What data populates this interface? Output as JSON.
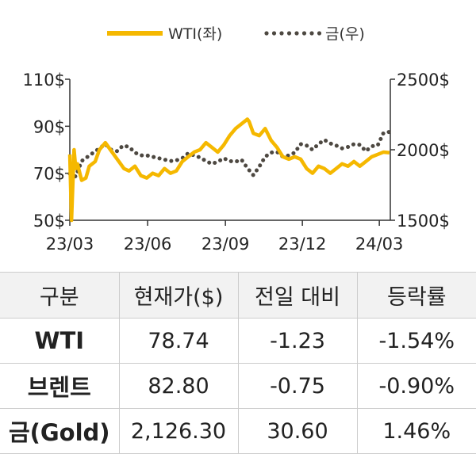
{
  "chart_data": {
    "type": "line",
    "x_ticks": [
      "23/03",
      "23/06",
      "23/09",
      "23/12",
      "24/03"
    ],
    "left_axis": {
      "ticks": [
        "50$",
        "70$",
        "90$",
        "110$"
      ],
      "ylim": [
        50,
        110
      ]
    },
    "right_axis": {
      "ticks": [
        "1500$",
        "2000$",
        "2500$"
      ],
      "ylim": [
        1500,
        2500
      ]
    },
    "legend_position": "top-center",
    "series": [
      {
        "name": "WTI(좌)",
        "axis": "left",
        "color": "#f5b800",
        "style": "solid",
        "x": [
          "2023-03-01",
          "2023-03-03",
          "2023-03-06",
          "2023-03-08",
          "2023-03-10",
          "2023-03-15",
          "2023-03-20",
          "2023-03-24",
          "2023-03-31",
          "2023-04-05",
          "2023-04-12",
          "2023-04-18",
          "2023-04-24",
          "2023-04-28",
          "2023-05-04",
          "2023-05-10",
          "2023-05-17",
          "2023-05-24",
          "2023-05-31",
          "2023-06-07",
          "2023-06-14",
          "2023-06-21",
          "2023-06-28",
          "2023-07-05",
          "2023-07-12",
          "2023-07-19",
          "2023-07-26",
          "2023-08-02",
          "2023-08-09",
          "2023-08-16",
          "2023-08-23",
          "2023-08-30",
          "2023-09-06",
          "2023-09-13",
          "2023-09-20",
          "2023-09-27",
          "2023-09-29",
          "2023-10-04",
          "2023-10-11",
          "2023-10-18",
          "2023-10-25",
          "2023-11-01",
          "2023-11-08",
          "2023-11-15",
          "2023-11-22",
          "2023-11-29",
          "2023-12-06",
          "2023-12-13",
          "2023-12-20",
          "2023-12-27",
          "2024-01-03",
          "2024-01-10",
          "2024-01-17",
          "2024-01-24",
          "2024-01-31",
          "2024-02-07",
          "2024-02-14",
          "2024-02-21",
          "2024-02-28",
          "2024-03-06",
          "2024-03-13"
        ],
        "values": [
          78,
          50,
          80,
          72,
          74,
          67,
          68,
          73,
          75,
          80,
          83,
          80,
          77,
          75,
          72,
          71,
          73,
          69,
          68,
          70,
          69,
          72,
          70,
          71,
          75,
          77,
          79,
          80,
          83,
          81,
          79,
          82,
          86,
          89,
          91,
          93,
          92,
          87,
          86,
          89,
          84,
          81,
          77,
          76,
          77,
          76,
          72,
          70,
          73,
          72,
          70,
          72,
          74,
          73,
          75,
          73,
          75,
          77,
          78,
          79,
          78.74
        ]
      },
      {
        "name": "금(우)",
        "axis": "right",
        "color": "#4d4841",
        "style": "dotted",
        "x": [
          "2023-03-01",
          "2023-03-08",
          "2023-03-15",
          "2023-03-22",
          "2023-03-29",
          "2023-04-05",
          "2023-04-12",
          "2023-04-19",
          "2023-04-26",
          "2023-05-03",
          "2023-05-10",
          "2023-05-17",
          "2023-05-24",
          "2023-05-31",
          "2023-06-07",
          "2023-06-14",
          "2023-06-21",
          "2023-06-28",
          "2023-07-05",
          "2023-07-12",
          "2023-07-19",
          "2023-07-26",
          "2023-08-02",
          "2023-08-09",
          "2023-08-16",
          "2023-08-23",
          "2023-08-30",
          "2023-09-06",
          "2023-09-13",
          "2023-09-20",
          "2023-09-27",
          "2023-10-04",
          "2023-10-11",
          "2023-10-18",
          "2023-10-25",
          "2023-11-01",
          "2023-11-08",
          "2023-11-15",
          "2023-11-22",
          "2023-11-29",
          "2023-12-06",
          "2023-12-13",
          "2023-12-20",
          "2023-12-27",
          "2024-01-03",
          "2024-01-10",
          "2024-01-17",
          "2024-01-24",
          "2024-01-31",
          "2024-02-07",
          "2024-02-14",
          "2024-02-21",
          "2024-02-28",
          "2024-03-06",
          "2024-03-13"
        ],
        "values": [
          1830,
          1810,
          1920,
          1950,
          1980,
          2010,
          2040,
          2000,
          1990,
          2030,
          2020,
          1980,
          1960,
          1960,
          1950,
          1940,
          1930,
          1920,
          1925,
          1940,
          1975,
          1960,
          1945,
          1920,
          1900,
          1915,
          1940,
          1920,
          1915,
          1930,
          1870,
          1820,
          1880,
          1950,
          1980,
          1985,
          1950,
          1960,
          1980,
          2040,
          2030,
          2000,
          2040,
          2070,
          2045,
          2030,
          2010,
          2020,
          2040,
          2035,
          1990,
          2025,
          2030,
          2120,
          2126.3
        ]
      }
    ]
  },
  "table": {
    "headers": [
      "구분",
      "현재가($)",
      "전일 대비",
      "등락률"
    ],
    "rows": [
      [
        "WTI",
        "78.74",
        "-1.23",
        "-1.54%"
      ],
      [
        "브렌트",
        "82.80",
        "-0.75",
        "-0.90%"
      ],
      [
        "금(Gold)",
        "2,126.30",
        "30.60",
        "1.46%"
      ]
    ]
  }
}
